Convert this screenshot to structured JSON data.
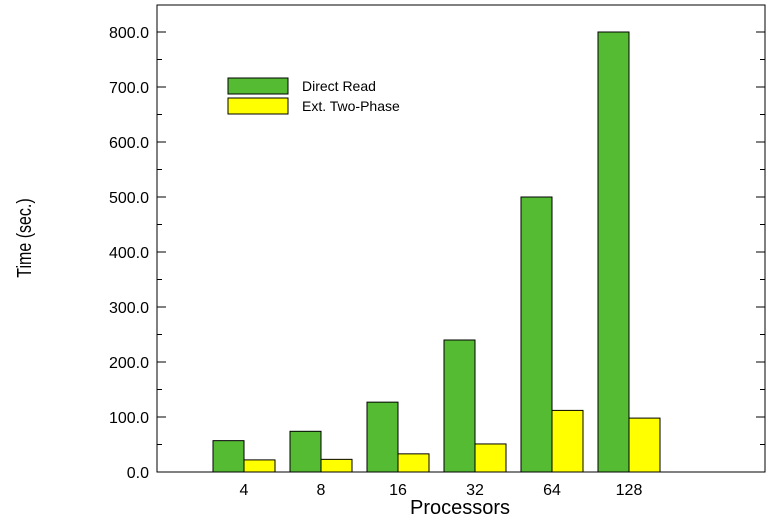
{
  "chart_data": {
    "type": "bar",
    "categories": [
      "4",
      "8",
      "16",
      "32",
      "64",
      "128"
    ],
    "series": [
      {
        "name": "Direct Read",
        "color": "#55bb33",
        "values": [
          57,
          74,
          127,
          240,
          500,
          800
        ]
      },
      {
        "name": "Ext. Two-Phase",
        "color": "#ffff00",
        "values": [
          22,
          23,
          33,
          51,
          112,
          98
        ]
      }
    ],
    "xlabel": "Processors",
    "ylabel": "Time (sec.)",
    "ylim": [
      0,
      800
    ],
    "yticks": [
      "0.0",
      "100.0",
      "200.0",
      "300.0",
      "400.0",
      "500.0",
      "600.0",
      "700.0",
      "800.0"
    ],
    "grid": false,
    "legend_position": "top-left"
  }
}
